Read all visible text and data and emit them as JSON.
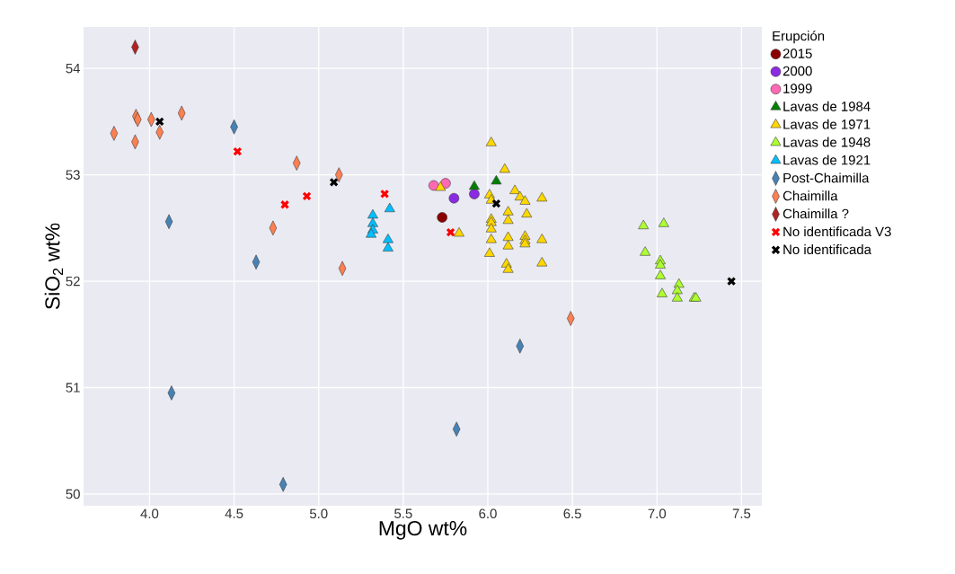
{
  "chart_data": {
    "type": "scatter",
    "xlabel": "MgO wt%",
    "ylabel": "SiO$_{2}$ wt%",
    "legend_title": "Erupción",
    "legend": "right",
    "grid": true,
    "xlim": [
      3.61,
      7.62
    ],
    "ylim": [
      49.89,
      54.39
    ],
    "xticks": [
      {
        "value": 4,
        "label": "4.0"
      },
      {
        "value": 4.5,
        "label": "4.5"
      },
      {
        "value": 5,
        "label": "5.0"
      },
      {
        "value": 5.5,
        "label": "5.5"
      },
      {
        "value": 6,
        "label": "6.0"
      },
      {
        "value": 6.5,
        "label": "6.5"
      },
      {
        "value": 7,
        "label": "7.0"
      },
      {
        "value": 7.5,
        "label": "7.5"
      }
    ],
    "yticks": [
      50,
      51,
      52,
      53,
      54
    ],
    "series": [
      {
        "name": "2015",
        "color": "#8b0000",
        "marker": "circle",
        "x": [
          5.73
        ],
        "values": [
          52.6
        ]
      },
      {
        "name": "2000",
        "color": "#8a2be2",
        "marker": "circle",
        "x": [
          5.8,
          5.92
        ],
        "values": [
          52.78,
          52.82
        ]
      },
      {
        "name": "1999",
        "color": "#ff69b4",
        "marker": "circle",
        "x": [
          5.68,
          5.75
        ],
        "values": [
          52.9,
          52.92
        ]
      },
      {
        "name": "Lavas de 1984",
        "color": "#008000",
        "marker": "triangle",
        "x": [
          5.92,
          6.05
        ],
        "values": [
          52.89,
          52.94
        ]
      },
      {
        "name": "Lavas de 1971",
        "color": "#ffd700",
        "marker": "triangle",
        "x": [
          5.72,
          5.83,
          6.02,
          6.1,
          6.01,
          6.02,
          6.12,
          6.12,
          6.16,
          6.19,
          6.22,
          6.23,
          6.32,
          6.02,
          6.02,
          6.02,
          6.02,
          6.12,
          6.12,
          6.22,
          6.22,
          6.22,
          6.32,
          6.01,
          6.11,
          6.12,
          6.32
        ],
        "values": [
          52.88,
          52.45,
          53.3,
          53.05,
          52.81,
          52.76,
          52.65,
          52.57,
          52.85,
          52.79,
          52.75,
          52.63,
          52.78,
          52.58,
          52.55,
          52.49,
          52.39,
          52.41,
          52.33,
          52.42,
          52.38,
          52.35,
          52.39,
          52.26,
          52.16,
          52.11,
          52.17
        ]
      },
      {
        "name": "Lavas de 1948",
        "color": "#adff2f",
        "marker": "triangle",
        "x": [
          6.92,
          7.04,
          6.93,
          7.02,
          7.02,
          7.02,
          7.03,
          7.13,
          7.12,
          7.12,
          7.22,
          7.23
        ],
        "values": [
          52.52,
          52.54,
          52.27,
          52.19,
          52.15,
          52.05,
          51.88,
          51.97,
          51.91,
          51.84,
          51.84,
          51.84
        ]
      },
      {
        "name": "Lavas de 1921",
        "color": "#00bfff",
        "marker": "triangle",
        "x": [
          5.32,
          5.32,
          5.32,
          5.31,
          5.42,
          5.41,
          5.41
        ],
        "values": [
          52.62,
          52.54,
          52.48,
          52.44,
          52.68,
          52.39,
          52.31
        ]
      },
      {
        "name": "Post-Chaimilla",
        "color": "#4682b4",
        "marker": "diamond",
        "x": [
          4.5,
          4.115,
          4.63,
          4.13,
          4.79,
          5.815,
          6.19
        ],
        "values": [
          53.45,
          52.56,
          52.18,
          50.95,
          50.09,
          50.61,
          51.39
        ]
      },
      {
        "name": "Chaimilla",
        "color": "#ff7f50",
        "marker": "diamond",
        "x": [
          3.79,
          3.915,
          3.92,
          3.93,
          4.01,
          4.06,
          4.19,
          4.87,
          5.12,
          4.73,
          5.14,
          6.49
        ],
        "values": [
          53.39,
          53.31,
          53.55,
          53.52,
          53.52,
          53.4,
          53.58,
          53.11,
          53.0,
          52.5,
          52.12,
          51.65
        ]
      },
      {
        "name": "Chaimilla ?",
        "color": "#b22222",
        "marker": "diamond",
        "x": [
          3.915
        ],
        "values": [
          54.2
        ]
      },
      {
        "name": "No identificada V3",
        "color": "#ff0000",
        "marker": "cross",
        "x": [
          4.52,
          4.8,
          4.93,
          5.39,
          5.78
        ],
        "values": [
          53.22,
          52.72,
          52.8,
          52.82,
          52.46
        ]
      },
      {
        "name": "No identificada",
        "color": "#000000",
        "marker": "cross",
        "x": [
          4.06,
          5.09,
          6.05,
          7.44
        ],
        "values": [
          53.5,
          52.93,
          52.73,
          52.0
        ]
      }
    ]
  }
}
